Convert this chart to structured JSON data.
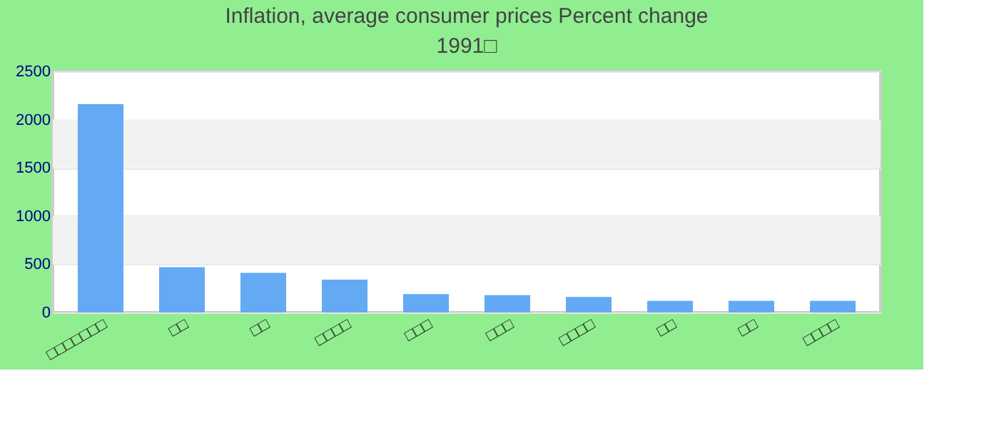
{
  "chart_data": {
    "type": "bar",
    "title": "Inflation, average consumer prices  Percent change",
    "subtitle": "1991□",
    "categories": [
      "□□□□□□□",
      "□□",
      "□□",
      "□□□□",
      "□□□",
      "□□□",
      "□□□□",
      "□□",
      "□□",
      "□□□□"
    ],
    "values": [
      2160,
      470,
      410,
      340,
      190,
      180,
      160,
      120,
      120,
      120
    ],
    "color": "#63a9f4",
    "ylim": [
      0,
      2500
    ],
    "yticks": [
      0,
      500,
      1000,
      1500,
      2000,
      2500
    ],
    "grid": "y"
  }
}
